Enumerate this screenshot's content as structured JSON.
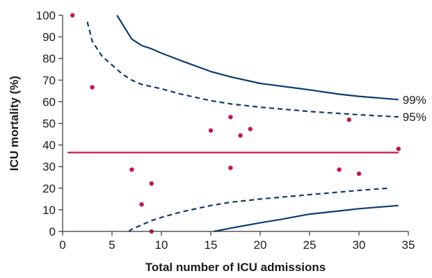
{
  "chart_data": {
    "type": "scatter",
    "xlabel": "Total number of ICU admissions",
    "ylabel": "ICU mortality (%)",
    "xlim": [
      0,
      35
    ],
    "ylim": [
      0,
      100
    ],
    "xticks": [
      "0",
      "5",
      "10",
      "15",
      "20",
      "25",
      "30",
      "35"
    ],
    "yticks": [
      "0",
      "10",
      "20",
      "30",
      "40",
      "50",
      "60",
      "70",
      "80",
      "90",
      "100"
    ],
    "grid": false,
    "colors": {
      "points": "#c4174a",
      "mean_line": "#c4174a",
      "limits": "#0d3b6e",
      "axis": "#333333"
    },
    "points": [
      {
        "x": 1,
        "y": 100
      },
      {
        "x": 3,
        "y": 66.7
      },
      {
        "x": 7,
        "y": 28.6
      },
      {
        "x": 8,
        "y": 12.5
      },
      {
        "x": 9,
        "y": 22.2
      },
      {
        "x": 9,
        "y": 0
      },
      {
        "x": 15,
        "y": 46.7
      },
      {
        "x": 17,
        "y": 52.9
      },
      {
        "x": 17,
        "y": 29.4
      },
      {
        "x": 18,
        "y": 44.4
      },
      {
        "x": 19,
        "y": 47.4
      },
      {
        "x": 28,
        "y": 28.6
      },
      {
        "x": 29,
        "y": 51.7
      },
      {
        "x": 30,
        "y": 26.7
      },
      {
        "x": 34,
        "y": 38.2
      }
    ],
    "mean": {
      "y": 36.5,
      "x_range": [
        1,
        34
      ]
    },
    "limits": [
      {
        "label": "99%",
        "style": "solid",
        "upper": [
          [
            5.5,
            100
          ],
          [
            7,
            89
          ],
          [
            8,
            86
          ],
          [
            9,
            84.5
          ],
          [
            10,
            82.5
          ],
          [
            12,
            79
          ],
          [
            15,
            74
          ],
          [
            17,
            71.5
          ],
          [
            20,
            68.5
          ],
          [
            25,
            65.5
          ],
          [
            28,
            63.5
          ],
          [
            30,
            62.5
          ],
          [
            34,
            61
          ]
        ],
        "lower": [
          [
            15.3,
            0
          ],
          [
            17,
            1.5
          ],
          [
            20,
            4
          ],
          [
            22,
            5.5
          ],
          [
            25,
            8
          ],
          [
            28,
            9.5
          ],
          [
            30,
            10.5
          ],
          [
            34,
            12
          ]
        ]
      },
      {
        "label": "95%",
        "style": "dashed",
        "upper": [
          [
            2.5,
            97
          ],
          [
            3,
            88
          ],
          [
            4,
            81
          ],
          [
            5,
            77
          ],
          [
            6,
            73
          ],
          [
            7,
            70
          ],
          [
            8,
            68
          ],
          [
            10,
            66
          ],
          [
            12,
            63.5
          ],
          [
            15,
            60.5
          ],
          [
            17,
            59
          ],
          [
            20,
            57.5
          ],
          [
            25,
            55.5
          ],
          [
            30,
            54
          ],
          [
            34,
            53
          ]
        ],
        "lower": [
          [
            6.7,
            0
          ],
          [
            7,
            1
          ],
          [
            8,
            3
          ],
          [
            9,
            5
          ],
          [
            10,
            6.5
          ],
          [
            12,
            9
          ],
          [
            15,
            12
          ],
          [
            17,
            13.5
          ],
          [
            20,
            15
          ],
          [
            25,
            17
          ],
          [
            30,
            19
          ],
          [
            33,
            20
          ]
        ]
      }
    ]
  }
}
